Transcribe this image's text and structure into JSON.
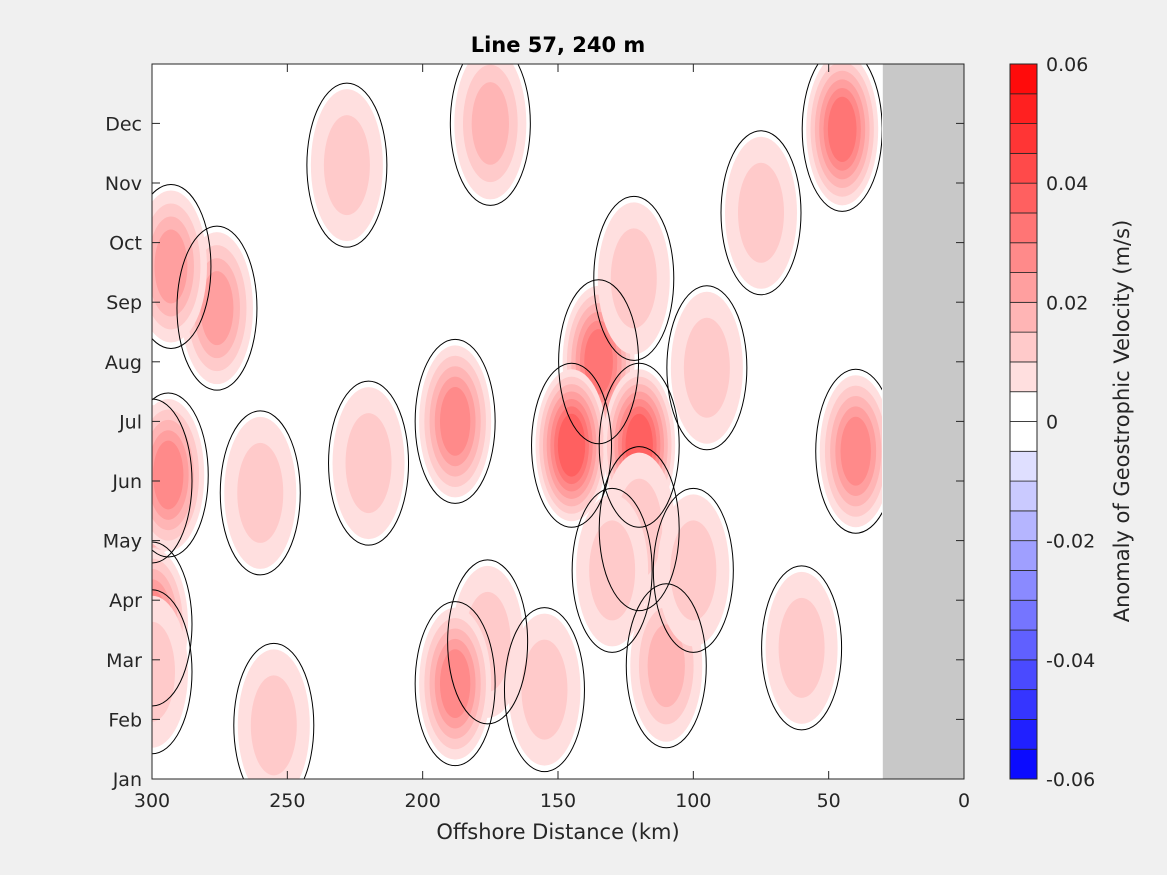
{
  "chart_data": {
    "type": "heatmap",
    "subtype": "filled-contour",
    "title": "Line 57, 240 m",
    "xlabel": "Offshore Distance (km)",
    "ylabel": "",
    "x_reversed": true,
    "xlim": [
      300,
      0
    ],
    "x_ticks": [
      300,
      250,
      200,
      150,
      100,
      50,
      0
    ],
    "x_tick_labels": [
      "300",
      "250",
      "200",
      "150",
      "100",
      "50",
      "0"
    ],
    "y_tick_labels": [
      "Jan",
      "Feb",
      "Mar",
      "Apr",
      "May",
      "Jun",
      "Jul",
      "Aug",
      "Sep",
      "Oct",
      "Nov",
      "Dec"
    ],
    "colorbar": {
      "label": "Anomaly of Geostrophic Velocity (m/s)",
      "range": [
        -0.06,
        0.06
      ],
      "levels": 24,
      "ticks": [
        0.06,
        0.04,
        0.02,
        0,
        -0.02,
        -0.04,
        -0.06
      ],
      "tick_labels": [
        "0.06",
        "0.04",
        "0.02",
        "0",
        "-0.02",
        "-0.04",
        "-0.06"
      ],
      "colormap": "blue-white-red"
    },
    "no_data_region_x": [
      30,
      0
    ],
    "no_data_color": "#c8c8c8",
    "zero_contour_color": "#000000",
    "features": [
      {
        "x": 300,
        "month": 5.0,
        "value": 0.055
      },
      {
        "x": 276,
        "month": 7.9,
        "value": 0.02
      },
      {
        "x": 228,
        "month": 10.3,
        "value": 0.012
      },
      {
        "x": 175,
        "month": 11.0,
        "value": 0.015
      },
      {
        "x": 135,
        "month": 7.0,
        "value": 0.03
      },
      {
        "x": 75,
        "month": 9.5,
        "value": 0.01
      },
      {
        "x": 40,
        "month": 5.5,
        "value": 0.025
      },
      {
        "x": 45,
        "month": 10.9,
        "value": 0.03
      },
      {
        "x": 110,
        "month": 1.9,
        "value": 0.015
      },
      {
        "x": 220,
        "month": 5.3,
        "value": 0.012
      },
      {
        "x": 188,
        "month": 6.0,
        "value": 0.025
      },
      {
        "x": 145,
        "month": 5.6,
        "value": 0.035
      },
      {
        "x": 120,
        "month": 5.6,
        "value": 0.035
      },
      {
        "x": 120,
        "month": 4.2,
        "value": 0.012
      },
      {
        "x": 122,
        "month": 8.4,
        "value": 0.012
      },
      {
        "x": 176,
        "month": 2.3,
        "value": 0.012
      },
      {
        "x": 100,
        "month": 3.5,
        "value": 0.008
      },
      {
        "x": 60,
        "month": 2.2,
        "value": 0.012
      },
      {
        "x": 260,
        "month": 4.8,
        "value": 0.012
      },
      {
        "x": 255,
        "month": 0.9,
        "value": 0.012
      },
      {
        "x": 188,
        "month": 1.6,
        "value": 0.025
      },
      {
        "x": 155,
        "month": 1.5,
        "value": 0.012
      },
      {
        "x": 95,
        "month": 6.9,
        "value": 0.01
      },
      {
        "x": 130,
        "month": 3.5,
        "value": 0.01
      },
      {
        "x": 293,
        "month": 8.6,
        "value": 0.018
      },
      {
        "x": 294,
        "month": 5.1,
        "value": 0.026
      },
      {
        "x": 300,
        "month": 2.6,
        "value": 0.025
      },
      {
        "x": 300,
        "month": 1.8,
        "value": 0.012
      }
    ]
  }
}
